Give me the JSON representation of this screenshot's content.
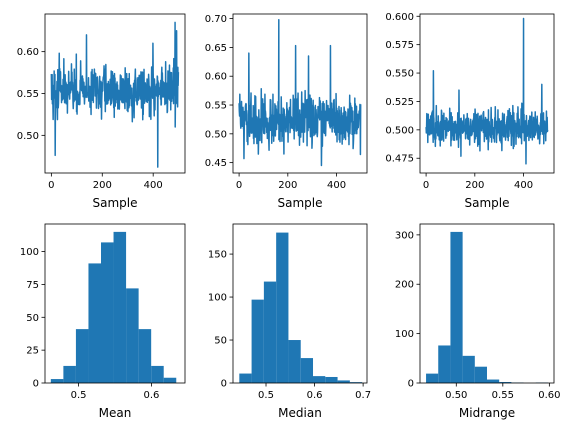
{
  "colors": {
    "series": "#1f77b4"
  },
  "chart_data": [
    {
      "id": "trace-mean",
      "type": "line",
      "xlabel": "Sample",
      "ylabel": "",
      "xlim": [
        -25,
        525
      ],
      "ylim": [
        0.455,
        0.645
      ],
      "xticks": [
        0,
        200,
        400
      ],
      "xtick_labels": [
        "0",
        "200",
        "400"
      ],
      "yticks": [
        0.5,
        0.55,
        0.6
      ],
      "ytick_labels": [
        "0.50",
        "0.55",
        "0.60"
      ],
      "n": 500,
      "base": 0.553,
      "noise": 0.026,
      "lo": 0.462,
      "hi": 0.635,
      "spikes": [
        [
          486,
          0.635
        ],
        [
          486.5,
          0.51
        ],
        [
          492,
          0.625
        ],
        [
          418,
          0.462
        ],
        [
          399,
          0.61
        ],
        [
          138,
          0.62
        ],
        [
          15,
          0.476
        ]
      ]
    },
    {
      "id": "trace-median",
      "type": "line",
      "xlabel": "Sample",
      "ylabel": "",
      "xlim": [
        -25,
        525
      ],
      "ylim": [
        0.432,
        0.708
      ],
      "xticks": [
        0,
        200,
        400
      ],
      "xtick_labels": [
        "0",
        "200",
        "400"
      ],
      "yticks": [
        0.45,
        0.5,
        0.55,
        0.6,
        0.65,
        0.7
      ],
      "ytick_labels": [
        "0.45",
        "0.50",
        "0.55",
        "0.60",
        "0.65",
        "0.70"
      ],
      "n": 500,
      "base": 0.523,
      "noise": 0.038,
      "lo": 0.445,
      "hi": 0.698,
      "spikes": [
        [
          163,
          0.698
        ],
        [
          163.5,
          0.49
        ],
        [
          40,
          0.64
        ],
        [
          232,
          0.653
        ],
        [
          375,
          0.653
        ],
        [
          338,
          0.445
        ],
        [
          285,
          0.635
        ]
      ]
    },
    {
      "id": "trace-midrange",
      "type": "line",
      "xlabel": "Sample",
      "ylabel": "",
      "xlim": [
        -25,
        525
      ],
      "ylim": [
        0.462,
        0.602
      ],
      "xticks": [
        0,
        200,
        400
      ],
      "xtick_labels": [
        "0",
        "200",
        "400"
      ],
      "yticks": [
        0.475,
        0.5,
        0.525,
        0.55,
        0.575,
        0.6
      ],
      "ytick_labels": [
        "0.475",
        "0.500",
        "0.525",
        "0.550",
        "0.575",
        "0.600"
      ],
      "n": 500,
      "base": 0.502,
      "noise": 0.014,
      "lo": 0.468,
      "hi": 0.598,
      "spikes": [
        [
          400,
          0.598
        ],
        [
          400.5,
          0.5
        ],
        [
          30,
          0.552
        ],
        [
          475,
          0.54
        ],
        [
          135,
          0.535
        ],
        [
          410,
          0.47
        ]
      ]
    },
    {
      "id": "hist-mean",
      "type": "bar",
      "xlabel": "Mean",
      "ylabel": "",
      "xlim": [
        0.454,
        0.646
      ],
      "ylim": [
        0,
        121
      ],
      "xticks": [
        0.5,
        0.6
      ],
      "xtick_labels": [
        "0.5",
        "0.6"
      ],
      "yticks": [
        0,
        25,
        50,
        75,
        100
      ],
      "ytick_labels": [
        "0",
        "25",
        "50",
        "75",
        "100"
      ],
      "bin_edges": [
        0.462,
        0.4792,
        0.4964,
        0.5136,
        0.5308,
        0.548,
        0.5652,
        0.5824,
        0.5996,
        0.6168,
        0.634
      ],
      "values": [
        3,
        13,
        41,
        91,
        107,
        115,
        72,
        41,
        13,
        4
      ]
    },
    {
      "id": "hist-median",
      "type": "bar",
      "xlabel": "Median",
      "ylabel": "",
      "xlim": [
        0.432,
        0.708
      ],
      "ylim": [
        0,
        185
      ],
      "xticks": [
        0.5,
        0.6,
        0.7
      ],
      "xtick_labels": [
        "0.5",
        "0.6",
        "0.7"
      ],
      "yticks": [
        0,
        50,
        100,
        150
      ],
      "ytick_labels": [
        "0",
        "50",
        "100",
        "150"
      ],
      "bin_edges": [
        0.445,
        0.4703,
        0.4956,
        0.5209,
        0.5462,
        0.5715,
        0.5968,
        0.6221,
        0.6474,
        0.6727,
        0.698
      ],
      "values": [
        11,
        97,
        118,
        175,
        50,
        29,
        8,
        7,
        3,
        1
      ]
    },
    {
      "id": "hist-midrange",
      "type": "bar",
      "xlabel": "Midrange",
      "ylabel": "",
      "xlim": [
        0.461,
        0.605
      ],
      "ylim": [
        0,
        322
      ],
      "xticks": [
        0.5,
        0.55,
        0.6
      ],
      "xtick_labels": [
        "0.50",
        "0.55",
        "0.60"
      ],
      "yticks": [
        0,
        100,
        200,
        300
      ],
      "ytick_labels": [
        "0",
        "100",
        "200",
        "300"
      ],
      "bin_edges": [
        0.4675,
        0.4806,
        0.4937,
        0.5068,
        0.5199,
        0.533,
        0.5461,
        0.5592,
        0.5723,
        0.5854,
        0.5985
      ],
      "values": [
        19,
        76,
        306,
        55,
        33,
        7,
        2,
        1,
        0,
        1
      ]
    }
  ]
}
